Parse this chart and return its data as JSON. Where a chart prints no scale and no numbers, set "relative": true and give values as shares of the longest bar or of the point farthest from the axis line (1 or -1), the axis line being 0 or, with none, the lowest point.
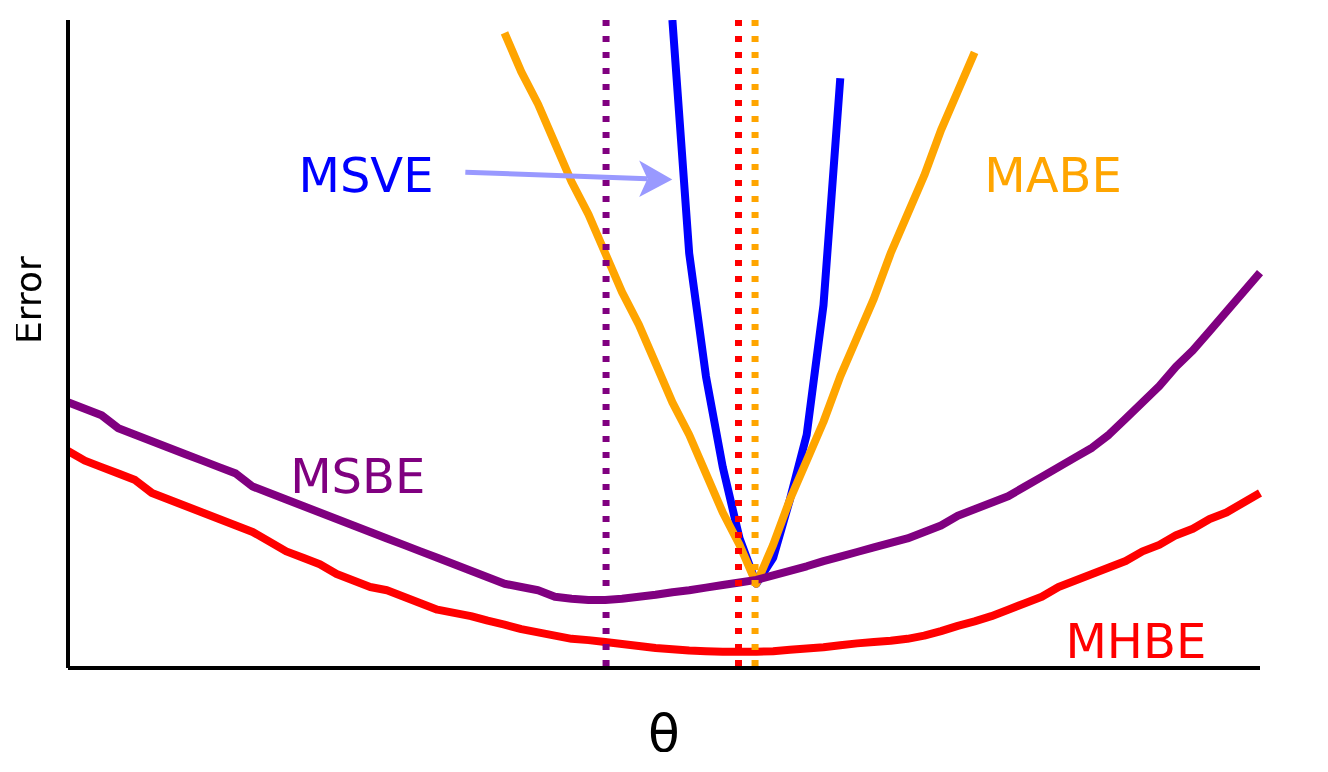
{
  "chart_data": {
    "type": "line",
    "relative": true,
    "xlabel": "θ",
    "ylabel": "Error",
    "marker": "none",
    "line_style": "solid",
    "categories": [
      null,
      null,
      null,
      null,
      null,
      null,
      null,
      null,
      null,
      null,
      null,
      null,
      null,
      null,
      null,
      null,
      null,
      null,
      null,
      null,
      null,
      null,
      null,
      null,
      null,
      null,
      null,
      null,
      null,
      null,
      null,
      null,
      null,
      null,
      null,
      null,
      null,
      null,
      null,
      null,
      null,
      null,
      null,
      null,
      null,
      null,
      null,
      null,
      null,
      null,
      null,
      null,
      null,
      null,
      null,
      null,
      null,
      null,
      null,
      null,
      null,
      null,
      null,
      null,
      null,
      null,
      null,
      null,
      null,
      null,
      null,
      null
    ],
    "series": [
      {
        "name": "MSVE",
        "color": "#0000ff",
        "values": [
          null,
          null,
          null,
          null,
          null,
          null,
          null,
          null,
          null,
          null,
          null,
          null,
          null,
          null,
          null,
          null,
          null,
          null,
          null,
          null,
          null,
          null,
          null,
          null,
          null,
          null,
          null,
          null,
          null,
          null,
          null,
          null,
          null,
          null,
          null,
          null,
          1.0,
          0.64,
          0.45,
          0.31,
          0.2,
          0.13,
          0.17,
          0.26,
          0.36,
          0.56,
          0.91,
          null,
          null,
          null,
          null,
          null,
          null,
          null,
          null,
          null,
          null,
          null,
          null,
          null,
          null,
          null,
          null,
          null,
          null,
          null,
          null,
          null,
          null,
          null,
          null,
          null
        ]
      },
      {
        "name": "MABE",
        "color": "#ffa500",
        "values": [
          null,
          null,
          null,
          null,
          null,
          null,
          null,
          null,
          null,
          null,
          null,
          null,
          null,
          null,
          null,
          null,
          null,
          null,
          null,
          null,
          null,
          null,
          null,
          null,
          null,
          null,
          0.98,
          0.92,
          0.87,
          0.81,
          0.75,
          0.7,
          0.64,
          0.58,
          0.53,
          0.47,
          0.41,
          0.36,
          0.3,
          0.24,
          0.19,
          0.13,
          0.19,
          0.26,
          0.32,
          0.38,
          0.45,
          0.51,
          0.57,
          0.64,
          0.7,
          0.76,
          0.83,
          0.89,
          0.95,
          null,
          null,
          null,
          null,
          null,
          null,
          null,
          null,
          null,
          null,
          null,
          null,
          null,
          null,
          null,
          null,
          null
        ]
      },
      {
        "name": "MSBE",
        "color": "#800080",
        "values": [
          0.41,
          0.4,
          0.39,
          0.37,
          0.36,
          0.35,
          0.34,
          0.33,
          0.32,
          0.31,
          0.3,
          0.28,
          0.27,
          0.26,
          0.25,
          0.24,
          0.23,
          0.22,
          0.21,
          0.2,
          0.19,
          0.18,
          0.17,
          0.16,
          0.15,
          0.14,
          0.13,
          0.125,
          0.12,
          0.11,
          0.107,
          0.105,
          0.105,
          0.107,
          0.11,
          0.113,
          0.117,
          0.12,
          0.124,
          0.128,
          0.132,
          0.136,
          0.143,
          0.15,
          0.157,
          0.165,
          0.172,
          0.179,
          0.186,
          0.193,
          0.2,
          0.21,
          0.22,
          0.235,
          0.245,
          0.255,
          0.265,
          0.28,
          0.295,
          0.31,
          0.325,
          0.34,
          0.36,
          0.385,
          0.41,
          0.435,
          0.465,
          0.49,
          0.52,
          0.55,
          0.58,
          0.61
        ]
      },
      {
        "name": "MHBE",
        "color": "#ff0000",
        "values": [
          0.335,
          0.32,
          0.31,
          0.3,
          0.29,
          0.27,
          0.26,
          0.25,
          0.24,
          0.23,
          0.22,
          0.21,
          0.195,
          0.18,
          0.17,
          0.16,
          0.145,
          0.135,
          0.125,
          0.12,
          0.11,
          0.1,
          0.09,
          0.085,
          0.08,
          0.073,
          0.067,
          0.06,
          0.055,
          0.05,
          0.045,
          0.043,
          0.04,
          0.037,
          0.034,
          0.031,
          0.029,
          0.027,
          0.026,
          0.025,
          0.025,
          0.025,
          0.026,
          0.028,
          0.03,
          0.032,
          0.035,
          0.038,
          0.04,
          0.042,
          0.045,
          0.05,
          0.057,
          0.065,
          0.072,
          0.08,
          0.09,
          0.1,
          0.11,
          0.125,
          0.135,
          0.145,
          0.155,
          0.165,
          0.18,
          0.19,
          0.205,
          0.215,
          0.23,
          0.24,
          0.255,
          0.27
        ]
      }
    ]
  }
}
